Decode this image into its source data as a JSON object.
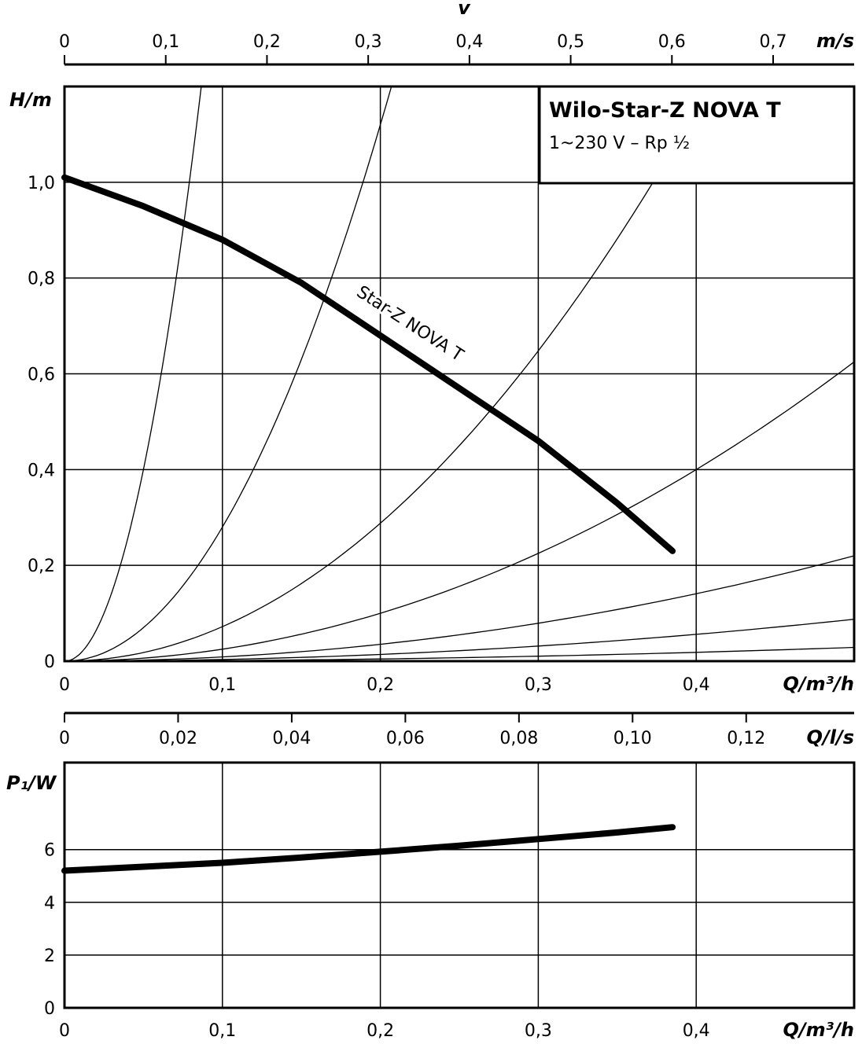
{
  "chart_data": [
    {
      "type": "line",
      "title": "Wilo-Star-Z NOVA T",
      "subtitle": "1~230 V – Rp ½",
      "xlabel": "Q/m³/h",
      "ylabel": "H/m",
      "xlim": [
        0,
        0.5
      ],
      "ylim": [
        0,
        1.2
      ],
      "x_ticks": [
        "0",
        "0,1",
        "0,2",
        "0,3",
        "0,4"
      ],
      "y_ticks": [
        "0",
        "0,2",
        "0,4",
        "0,6",
        "0,8",
        "1,0"
      ],
      "grid": true,
      "secondary_axes": [
        {
          "label": "v",
          "unit": "m/s",
          "max": 0.78,
          "ticks": [
            "0",
            "0,1",
            "0,2",
            "0,3",
            "0,4",
            "0,5",
            "0,6",
            "0,7"
          ]
        },
        {
          "label": "Q/l/s",
          "max": 0.139,
          "ticks": [
            "0",
            "0,02",
            "0,04",
            "0,06",
            "0,08",
            "0,10",
            "0,12"
          ]
        }
      ],
      "series": [
        {
          "name": "Star-Z NOVA T",
          "x": [
            0,
            0.05,
            0.1,
            0.15,
            0.2,
            0.25,
            0.3,
            0.35,
            0.385
          ],
          "y": [
            1.01,
            0.95,
            0.88,
            0.79,
            0.68,
            0.57,
            0.46,
            0.33,
            0.23
          ]
        }
      ],
      "system_curve_k": [
        160,
        28,
        7.2,
        2.5,
        0.88,
        0.35,
        0.115
      ]
    },
    {
      "type": "line",
      "xlabel": "Q/m³/h",
      "ylabel": "P₁/W",
      "xlim": [
        0,
        0.5
      ],
      "ylim": [
        0,
        9.3
      ],
      "x_ticks": [
        "0",
        "0,1",
        "0,2",
        "0,3",
        "0,4"
      ],
      "y_ticks": [
        "0",
        "2",
        "4",
        "6"
      ],
      "grid": true,
      "series": [
        {
          "x": [
            0,
            0.05,
            0.1,
            0.15,
            0.2,
            0.25,
            0.3,
            0.35,
            0.385
          ],
          "y": [
            5.2,
            5.35,
            5.5,
            5.7,
            5.92,
            6.15,
            6.4,
            6.65,
            6.85
          ]
        }
      ]
    }
  ]
}
